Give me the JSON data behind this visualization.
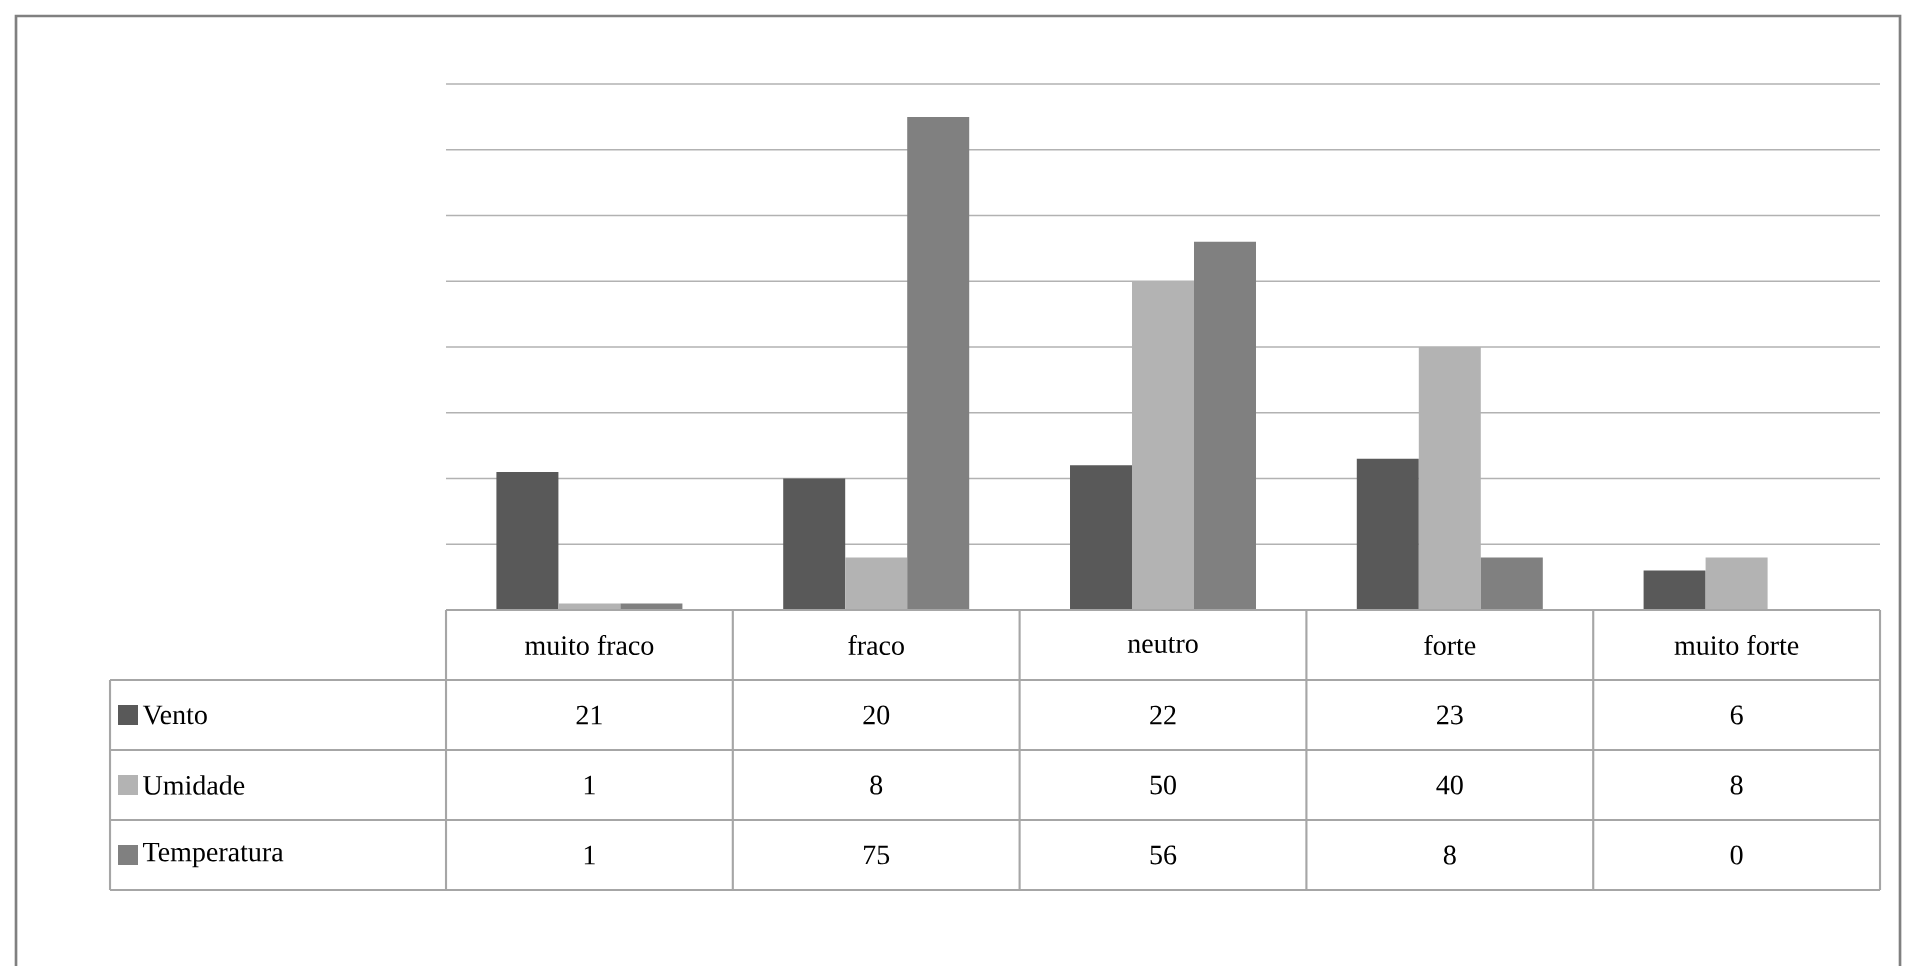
{
  "chart_data": {
    "type": "bar",
    "categories": [
      "muito fraco",
      "fraco",
      "neutro",
      "forte",
      "muito forte"
    ],
    "series": [
      {
        "name": "Vento",
        "color": "#595959",
        "values": [
          21,
          20,
          22,
          23,
          6
        ]
      },
      {
        "name": "Umidade",
        "color": "#b3b3b3",
        "values": [
          1,
          8,
          50,
          40,
          8
        ]
      },
      {
        "name": "Temperatura",
        "color": "#808080",
        "values": [
          1,
          75,
          56,
          8,
          0
        ]
      }
    ],
    "ylim": [
      0,
      80
    ],
    "yticks": [
      {
        "value": 0,
        "label": null
      },
      {
        "value": 10,
        "label": null
      },
      {
        "value": 20,
        "label": null
      },
      {
        "value": 30,
        "label": null
      },
      {
        "value": 40,
        "label": null
      },
      {
        "value": 50,
        "label": null
      },
      {
        "value": 60,
        "label": null
      },
      {
        "value": 70,
        "label": null
      },
      {
        "value": 80,
        "label": null
      }
    ],
    "grid": "y",
    "data_labels": true,
    "legend": "bottom"
  }
}
